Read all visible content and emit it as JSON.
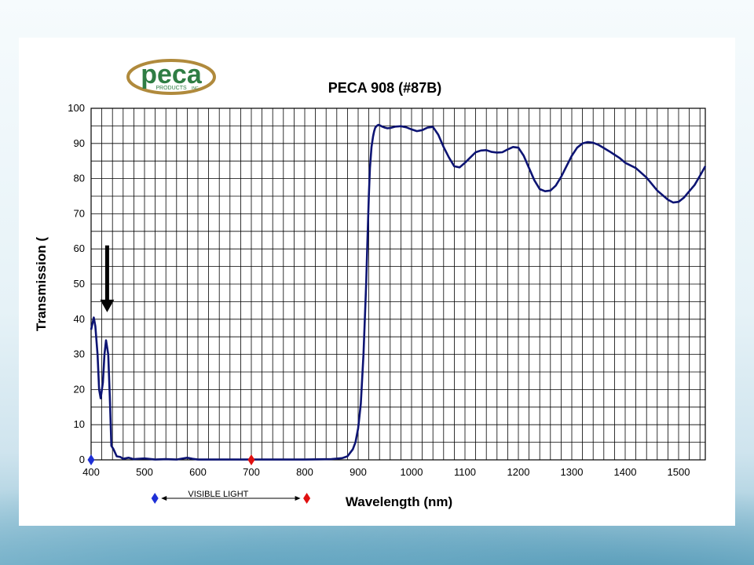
{
  "logo": {
    "wordmark": "peca",
    "subtext": "PRODUCTS",
    "suffix": "INC.",
    "colors": {
      "green": "#2f7d44",
      "gold": "#b08a3c"
    }
  },
  "chart_data": {
    "type": "line",
    "title": "PECA 908 (#87B)",
    "xlabel": "Wavelength (nm)",
    "ylabel": "Transmission (",
    "xlim": [
      400,
      1550
    ],
    "ylim": [
      0,
      100
    ],
    "xticks": [
      400,
      500,
      600,
      700,
      800,
      900,
      1000,
      1100,
      1200,
      1300,
      1400,
      1500
    ],
    "yticks": [
      0,
      10,
      20,
      30,
      40,
      50,
      60,
      70,
      80,
      90,
      100
    ],
    "grid": true,
    "line_color": "#0d1473",
    "series": [
      {
        "x": [
          400,
          405,
          408,
          412,
          415,
          418,
          422,
          425,
          428,
          432,
          435,
          438,
          442,
          448,
          455,
          460,
          470,
          480,
          500,
          520,
          540,
          560,
          580,
          590,
          600,
          650,
          700,
          750,
          800,
          850,
          870,
          880,
          890,
          895,
          900,
          905,
          910,
          915,
          918,
          920,
          922,
          925,
          928,
          930,
          932,
          935,
          938,
          940,
          945,
          950,
          955,
          960,
          970,
          980,
          990,
          1000,
          1010,
          1020,
          1030,
          1040,
          1050,
          1060,
          1070,
          1080,
          1090,
          1100,
          1110,
          1120,
          1130,
          1140,
          1150,
          1160,
          1170,
          1180,
          1190,
          1200,
          1210,
          1220,
          1230,
          1240,
          1250,
          1260,
          1270,
          1280,
          1290,
          1300,
          1310,
          1320,
          1330,
          1340,
          1350,
          1360,
          1370,
          1380,
          1390,
          1400,
          1420,
          1440,
          1460,
          1480,
          1490,
          1500,
          1510,
          1520,
          1530,
          1540,
          1550
        ],
        "y": [
          37,
          40.5,
          38,
          30,
          20,
          17.5,
          22,
          30,
          34,
          30,
          18,
          4,
          3,
          1,
          0.8,
          0.3,
          0.6,
          0.2,
          0.4,
          0.1,
          0.2,
          0.1,
          0.6,
          0.3,
          0.1,
          0.1,
          0.1,
          0.1,
          0.1,
          0.2,
          0.5,
          1,
          3,
          5,
          9,
          16,
          30,
          50,
          65,
          75,
          83,
          89,
          92,
          93.5,
          94.5,
          95,
          95.3,
          95.2,
          94.8,
          94.5,
          94.3,
          94.4,
          94.8,
          94.9,
          94.6,
          94,
          93.5,
          93.8,
          94.5,
          94.7,
          92.5,
          89,
          86,
          83.5,
          83.2,
          84.5,
          86,
          87.5,
          88,
          88.1,
          87.6,
          87.4,
          87.5,
          88.3,
          89,
          88.8,
          86.5,
          83,
          79.5,
          77,
          76.4,
          76.6,
          78,
          80.5,
          83.5,
          86.5,
          88.8,
          90,
          90.4,
          90.2,
          89.6,
          88.7,
          87.8,
          86.8,
          85.8,
          84.5,
          83,
          80.3,
          76.6,
          74,
          73.2,
          73.4,
          74.6,
          76.4,
          78.2,
          80.8,
          83.5
        ]
      }
    ],
    "annotations": {
      "arrow": {
        "x": 430,
        "from_y": 61,
        "to_y": 42
      },
      "markers": [
        {
          "x": 400,
          "y": 0,
          "color": "#1e2fd6"
        },
        {
          "x": 700,
          "y": 0,
          "color": "#e01010"
        }
      ],
      "visible_light": {
        "label": "VISIBLE LIGHT",
        "from_x": 540,
        "to_x": 795,
        "start_color": "#1e2fd6",
        "end_color": "#e01010"
      }
    }
  }
}
